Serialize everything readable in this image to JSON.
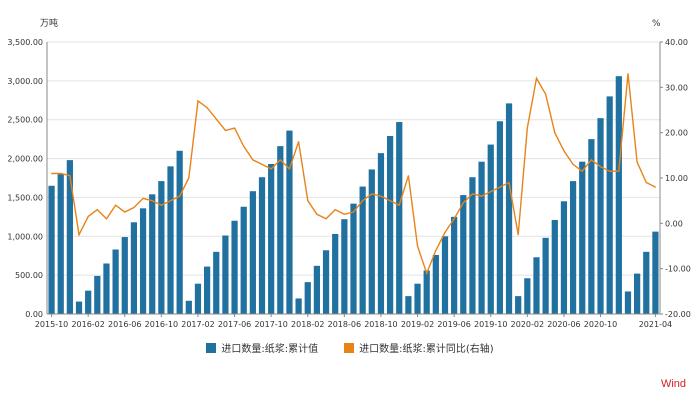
{
  "chart_data": {
    "type": "bar+line",
    "left_unit": "万吨",
    "right_unit": "%",
    "left_ylim": [
      0,
      3500
    ],
    "right_ylim": [
      -20,
      40
    ],
    "left_ticks": [
      "0.00",
      "500.00",
      "1,000.00",
      "1,500.00",
      "2,000.00",
      "2,500.00",
      "3,000.00",
      "3,500.00"
    ],
    "right_ticks": [
      "-20.00",
      "-10.00",
      "0.00",
      "10.00",
      "20.00",
      "30.00",
      "40.00"
    ],
    "x_labels": [
      "2015-10",
      "2016-02",
      "2016-06",
      "2016-10",
      "2017-02",
      "2017-06",
      "2017-10",
      "2018-02",
      "2018-06",
      "2018-10",
      "2019-02",
      "2019-06",
      "2019-10",
      "2020-02",
      "2020-06",
      "2020-10",
      "2021-04"
    ],
    "x": [
      "2015-10",
      "2015-11",
      "2015-12",
      "2016-01",
      "2016-02",
      "2016-03",
      "2016-04",
      "2016-05",
      "2016-06",
      "2016-07",
      "2016-08",
      "2016-09",
      "2016-10",
      "2016-11",
      "2016-12",
      "2017-01",
      "2017-02",
      "2017-03",
      "2017-04",
      "2017-05",
      "2017-06",
      "2017-07",
      "2017-08",
      "2017-09",
      "2017-10",
      "2017-11",
      "2017-12",
      "2018-01",
      "2018-02",
      "2018-03",
      "2018-04",
      "2018-05",
      "2018-06",
      "2018-07",
      "2018-08",
      "2018-09",
      "2018-10",
      "2018-11",
      "2018-12",
      "2019-01",
      "2019-02",
      "2019-03",
      "2019-04",
      "2019-05",
      "2019-06",
      "2019-07",
      "2019-08",
      "2019-09",
      "2019-10",
      "2019-11",
      "2019-12",
      "2020-01",
      "2020-02",
      "2020-03",
      "2020-04",
      "2020-05",
      "2020-06",
      "2020-07",
      "2020-08",
      "2020-09",
      "2020-10",
      "2020-11",
      "2020-12",
      "2021-01",
      "2021-02",
      "2021-03",
      "2021-04"
    ],
    "series": [
      {
        "name": "进口数量:纸浆:累计值",
        "axis": "left",
        "type": "bar",
        "values": [
          1650,
          1800,
          1980,
          160,
          300,
          490,
          650,
          830,
          990,
          1180,
          1360,
          1540,
          1710,
          1900,
          2100,
          170,
          390,
          610,
          800,
          1010,
          1200,
          1380,
          1580,
          1760,
          1930,
          2160,
          2360,
          200,
          410,
          620,
          820,
          1030,
          1220,
          1420,
          1640,
          1860,
          2070,
          2290,
          2470,
          230,
          390,
          560,
          760,
          1000,
          1250,
          1530,
          1760,
          1960,
          2180,
          2480,
          2710,
          230,
          460,
          730,
          980,
          1210,
          1450,
          1710,
          1960,
          2250,
          2520,
          2800,
          3060,
          290,
          520,
          800,
          1060
        ]
      },
      {
        "name": "进口数量:纸浆:累计同比(右轴)",
        "axis": "right",
        "type": "line",
        "values": [
          11,
          11,
          10.5,
          -2.5,
          1.5,
          3,
          1,
          4,
          2.5,
          3.5,
          5.5,
          5,
          4,
          5,
          6,
          10,
          27,
          25.5,
          23,
          20.5,
          21,
          17,
          14,
          13,
          12,
          14,
          12,
          18,
          5,
          2,
          1,
          3,
          2,
          2.5,
          5,
          6.5,
          6,
          5,
          4,
          10.5,
          -5,
          -11,
          -6,
          -2,
          1,
          4.5,
          6.5,
          6,
          7,
          8,
          9,
          -2.5,
          21,
          32,
          28.5,
          20,
          16,
          13,
          11.5,
          14,
          12.5,
          11.5,
          11.5,
          33,
          13.5,
          9,
          8
        ]
      }
    ],
    "legend_position": "bottom-center"
  },
  "legend": [
    {
      "label": "进口数量:纸浆:累计值",
      "color": "#2070a0"
    },
    {
      "label": "进口数量:纸浆:累计同比(右轴)",
      "color": "#e8831a"
    }
  ],
  "brand": {
    "text": "Wind",
    "color": "#d42020"
  }
}
